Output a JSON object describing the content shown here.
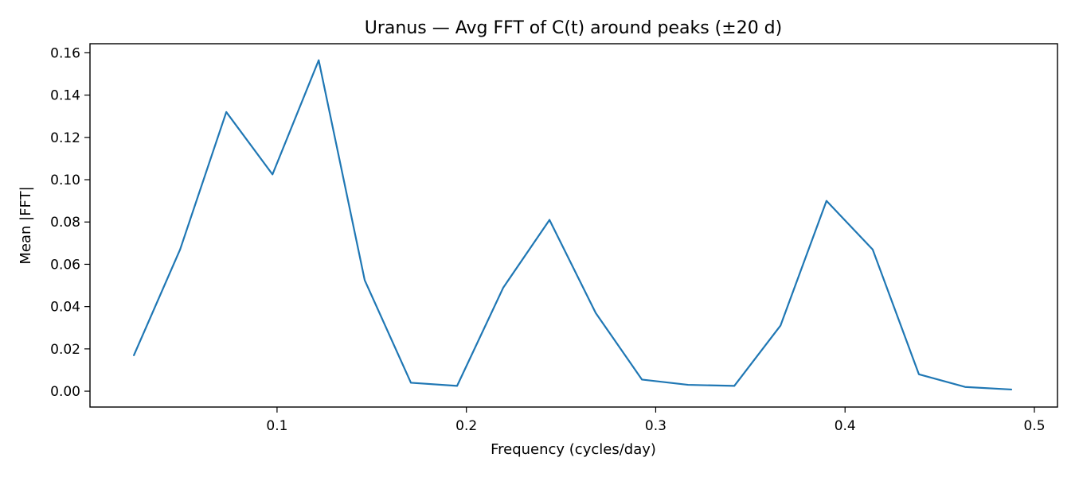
{
  "chart_data": {
    "type": "line",
    "title": "Uranus — Avg FFT of C(t) around peaks (±20 d)",
    "xlabel": "Frequency (cycles/day)",
    "ylabel": "Mean |FFT|",
    "xlim": [
      0.0012,
      0.5122
    ],
    "ylim": [
      -0.0075,
      0.1643
    ],
    "xticks": [
      0.1,
      0.2,
      0.3,
      0.4,
      0.5
    ],
    "xtick_labels": [
      "0.1",
      "0.2",
      "0.3",
      "0.4",
      "0.5"
    ],
    "yticks": [
      0.0,
      0.02,
      0.04,
      0.06,
      0.08,
      0.1,
      0.12,
      0.14,
      0.16
    ],
    "ytick_labels": [
      "0.00",
      "0.02",
      "0.04",
      "0.06",
      "0.08",
      "0.10",
      "0.12",
      "0.14",
      "0.16"
    ],
    "grid": false,
    "series": [
      {
        "color": "#1f77b4",
        "x": [
          0.0244,
          0.0488,
          0.0732,
          0.0976,
          0.122,
          0.1463,
          0.1707,
          0.1951,
          0.2195,
          0.2439,
          0.2683,
          0.2927,
          0.3171,
          0.3415,
          0.3659,
          0.3902,
          0.4146,
          0.439,
          0.4634,
          0.4878
        ],
        "y": [
          0.017,
          0.067,
          0.132,
          0.1025,
          0.1565,
          0.0525,
          0.004,
          0.0025,
          0.049,
          0.081,
          0.037,
          0.0055,
          0.003,
          0.0025,
          0.031,
          0.09,
          0.067,
          0.008,
          0.002,
          0.0008
        ]
      }
    ]
  }
}
